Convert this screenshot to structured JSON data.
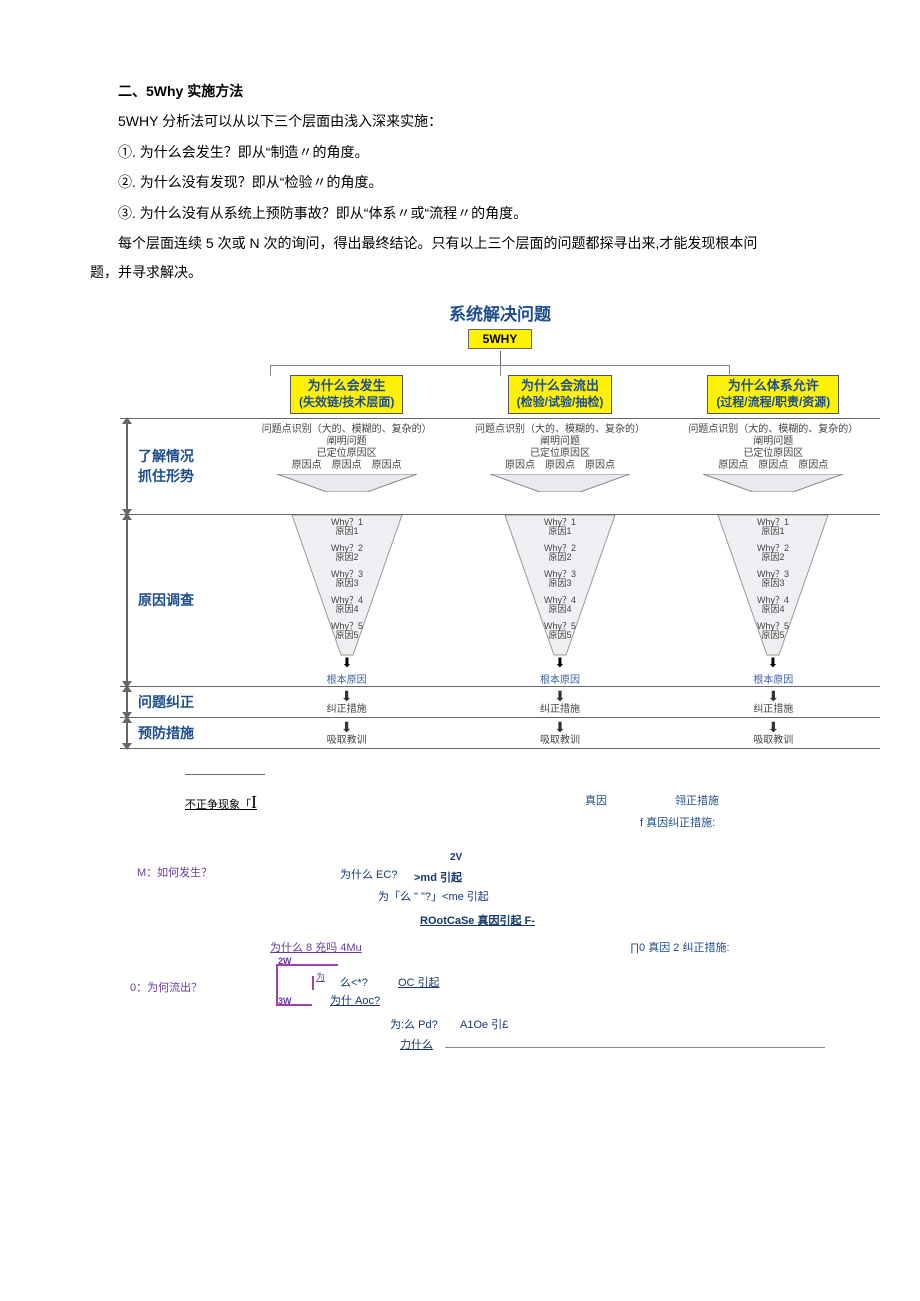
{
  "text": {
    "heading": "二、5Why 实施方法",
    "p1": "5WHY 分析法可以从以下三个层面由浅入深来实施：",
    "li1": "①. 为什么会发生？即从“制造〃的角度。",
    "li2": "②. 为什么没有发现？即从“检验〃的角度。",
    "li3": "③. 为什么没有从系统上预防事故？即从“体系〃或“流程〃的角度。",
    "p2a": "每个层面连续 5 次或 N 次的询问，得出最终结论。只有以上三个层面的问题都探寻出来,才能发现根本问",
    "p2b": "题，并寻求解决。"
  },
  "diagram": {
    "title": "系统解决问题",
    "fivewhy": "5WHY",
    "headers": {
      "c1a": "为什么会发生",
      "c1b": "(失效链/技术层面)",
      "c2a": "为什么会流出",
      "c2b": "(检验/试验/抽检)",
      "c3a": "为什么体系允许",
      "c3b": "(过程/流程/职责/资源)"
    },
    "phase": {
      "p1a": "了解情况",
      "p1b": "抓住形势",
      "p2": "原因调查",
      "p3": "问题纠正",
      "p4": "预防措施"
    },
    "funnel_top": {
      "l1": "问题点识别（大的、模糊的、复杂的）",
      "l2": "阐明问题",
      "l3": "已定位原因区",
      "l4": "原因点　原因点　原因点"
    },
    "whys": [
      "Why？1",
      "Why？2",
      "Why？3",
      "Why？4",
      "Why？5"
    ],
    "causes": [
      "原因1",
      "原因2",
      "原因3",
      "原因4",
      "原因5"
    ],
    "root": "根本原因",
    "corr": "纠正措施",
    "prev": "吸取教训",
    "colors": {
      "title": "#1f4e8c",
      "header_bg": "#fff200",
      "header_fg": "#1f4e8c",
      "phase_fg": "#1f4e8c",
      "funnel_fill": "#e9e9ef",
      "funnel_stroke": "#888"
    }
  },
  "sketch": {
    "abnormal": "不正争现象「",
    "I": "I",
    "true_cause": "真因",
    "corr_action": "翎正措施",
    "f_line": "f 真因纠正措施:",
    "m_label": "M：如何发生？",
    "v2": "2V",
    "why_ec": "为什么 EC?",
    "md": ">md 引起",
    "me": "为「么 \" \"?」<me 引起",
    "rootcase": "ROotCaSe 真因引起 F-",
    "why_84m": "为什么 8 充吗 4Mu",
    "corr2": "∏0 真因 2 纠正措施:",
    "o_label": "0：为何流出？",
    "tag2w": "2W",
    "tag3w": "3W",
    "me_star": "么<*?",
    "oc": "OC 引起",
    "why_aoc": "为什 Aoc?",
    "why_pd": "为:么 Pd?",
    "a1oe": "A1Oe 引£",
    "why_last": "力什么",
    "colors": {
      "blue": "#1f4e8c",
      "purple": "#6a3aa0",
      "navy": "#14386f",
      "line_purple": "#a040b0"
    }
  }
}
